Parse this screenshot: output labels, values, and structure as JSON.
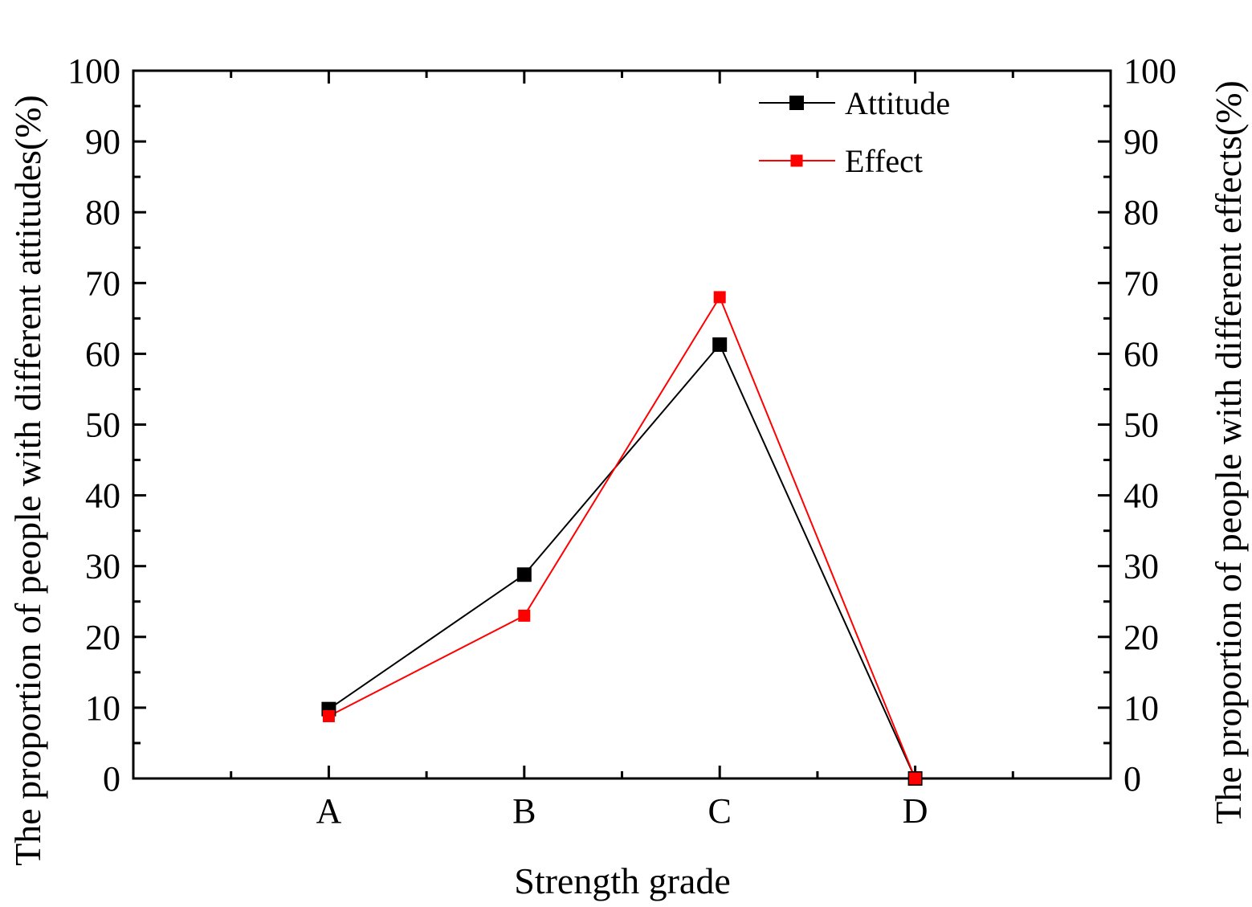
{
  "chart_data": {
    "type": "line",
    "title": "",
    "xlabel": "Strength grade",
    "ylabel": "The proportion of people with different attitudes(%)",
    "ylabel_right": "The proportion of people with different effects(%)",
    "categories": [
      "A",
      "B",
      "C",
      "D"
    ],
    "ylim": [
      0,
      100
    ],
    "yticks": [
      0,
      10,
      20,
      30,
      40,
      50,
      60,
      70,
      80,
      90,
      100
    ],
    "ytick_labels": [
      "0",
      "10",
      "20",
      "30",
      "40",
      "50",
      "60",
      "70",
      "80",
      "90",
      "100"
    ],
    "grid": false,
    "legend": "top-right",
    "series": [
      {
        "name": "Attitude",
        "color": "#000000",
        "marker": "square",
        "values": [
          9.8,
          28.8,
          61.3,
          0
        ]
      },
      {
        "name": "Effect",
        "color": "#ff0000",
        "marker": "square",
        "values": [
          8.8,
          23.0,
          68.0,
          0
        ]
      }
    ]
  }
}
